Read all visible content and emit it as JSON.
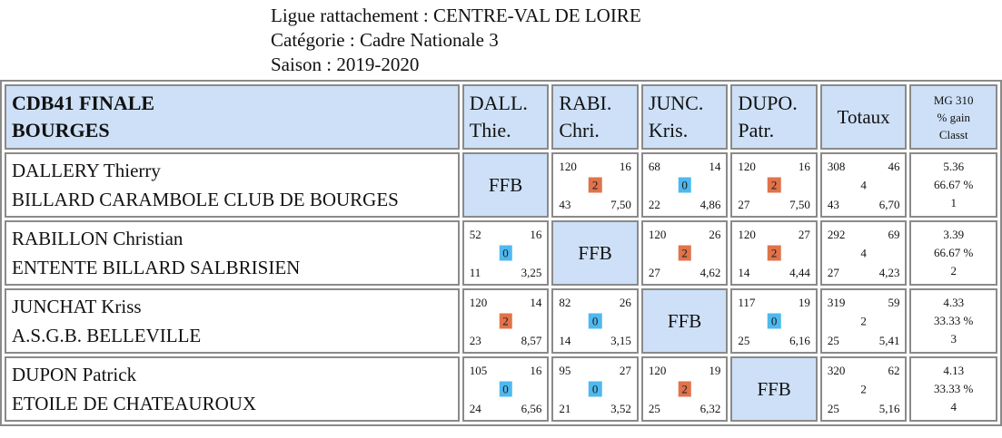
{
  "header": {
    "ligue": "Ligue rattachement : CENTRE-VAL DE LOIRE",
    "categorie": "Catégorie : Cadre Nationale 3",
    "saison": "Saison : 2019-2020"
  },
  "table": {
    "title_line1": "CDB41 FINALE",
    "title_line2": "BOURGES",
    "columns": [
      {
        "line1": "DALL.",
        "line2": "Thie."
      },
      {
        "line1": "RABI.",
        "line2": "Chri."
      },
      {
        "line1": "JUNC.",
        "line2": "Kris."
      },
      {
        "line1": "DUPO.",
        "line2": "Patr."
      }
    ],
    "totals_label": "Totaux",
    "mg_header": {
      "line1": "MG 310",
      "line2": "% gain",
      "line3": "Classt"
    },
    "ffb_label": "FFB",
    "rows": [
      {
        "name": "DALLERY Thierry",
        "club": "BILLARD CARAMBOLE CLUB DE BOURGES",
        "cells": [
          null,
          {
            "points": "120",
            "innings": "16",
            "result": "2",
            "series": "43",
            "avg": "7,50"
          },
          {
            "points": "68",
            "innings": "14",
            "result": "0",
            "series": "22",
            "avg": "4,86"
          },
          {
            "points": "120",
            "innings": "16",
            "result": "2",
            "series": "27",
            "avg": "7,50"
          }
        ],
        "totals": {
          "points": "308",
          "innings": "46",
          "result": "4",
          "series": "43",
          "avg": "6,70"
        },
        "mg": {
          "mg": "5.36",
          "pct": "66.67 %",
          "rank": "1"
        }
      },
      {
        "name": "RABILLON Christian",
        "club": "ENTENTE BILLARD SALBRISIEN",
        "cells": [
          {
            "points": "52",
            "innings": "16",
            "result": "0",
            "series": "11",
            "avg": "3,25"
          },
          null,
          {
            "points": "120",
            "innings": "26",
            "result": "2",
            "series": "27",
            "avg": "4,62"
          },
          {
            "points": "120",
            "innings": "27",
            "result": "2",
            "series": "14",
            "avg": "4,44"
          }
        ],
        "totals": {
          "points": "292",
          "innings": "69",
          "result": "4",
          "series": "27",
          "avg": "4,23"
        },
        "mg": {
          "mg": "3.39",
          "pct": "66.67 %",
          "rank": "2"
        }
      },
      {
        "name": "JUNCHAT Kriss",
        "club": "A.S.G.B. BELLEVILLE",
        "cells": [
          {
            "points": "120",
            "innings": "14",
            "result": "2",
            "series": "23",
            "avg": "8,57"
          },
          {
            "points": "82",
            "innings": "26",
            "result": "0",
            "series": "14",
            "avg": "3,15"
          },
          null,
          {
            "points": "117",
            "innings": "19",
            "result": "0",
            "series": "25",
            "avg": "6,16"
          }
        ],
        "totals": {
          "points": "319",
          "innings": "59",
          "result": "2",
          "series": "25",
          "avg": "5,41"
        },
        "mg": {
          "mg": "4.33",
          "pct": "33.33 %",
          "rank": "3"
        }
      },
      {
        "name": "DUPON Patrick",
        "club": "ETOILE DE CHATEAUROUX",
        "cells": [
          {
            "points": "105",
            "innings": "16",
            "result": "0",
            "series": "24",
            "avg": "6,56"
          },
          {
            "points": "95",
            "innings": "27",
            "result": "0",
            "series": "21",
            "avg": "3,52"
          },
          {
            "points": "120",
            "innings": "19",
            "result": "2",
            "series": "25",
            "avg": "6,32"
          },
          null
        ],
        "totals": {
          "points": "320",
          "innings": "62",
          "result": "2",
          "series": "25",
          "avg": "5,16"
        },
        "mg": {
          "mg": "4.13",
          "pct": "33.33 %",
          "rank": "4"
        }
      }
    ]
  },
  "colors": {
    "header_bg": "#cde0f7",
    "win_badge": "#e0734a",
    "loss_badge": "#4fb8ee"
  }
}
